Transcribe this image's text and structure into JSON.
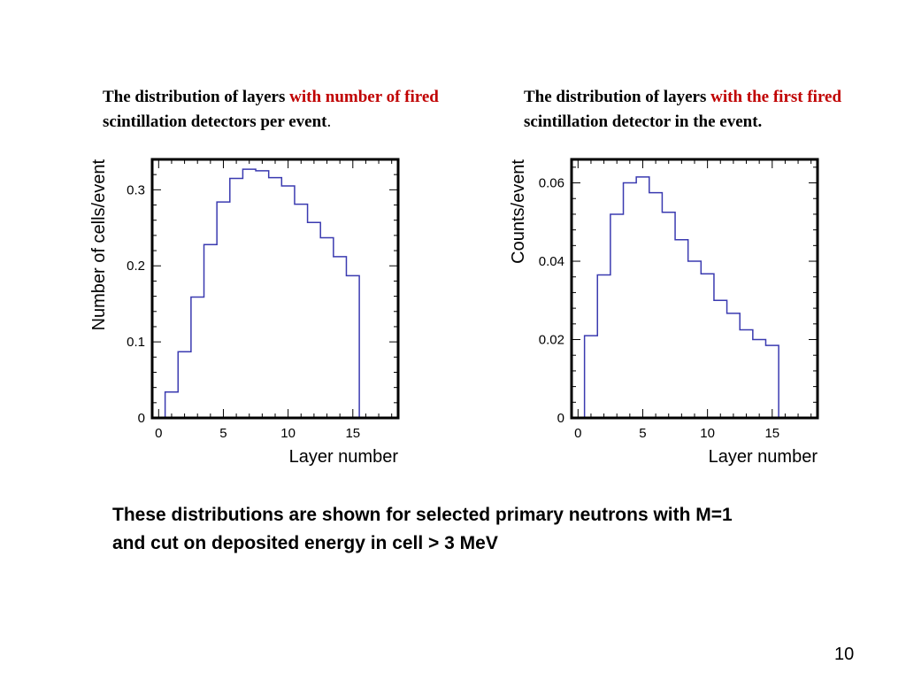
{
  "captions": {
    "left": {
      "part1": "The distribution of layers ",
      "highlight": "with number of fired",
      "part2": " scintillation detectors per event",
      "suffix": "."
    },
    "right": {
      "part1": "The distribution of layers ",
      "highlight": "with the first fired",
      "part2": " scintillation detector in the event."
    }
  },
  "colors": {
    "highlight": "#c00000",
    "histogram": "#3a3ab0",
    "frame": "#000000"
  },
  "chart_data": [
    {
      "type": "bar",
      "style": "step-histogram",
      "xlabel": "Layer number",
      "ylabel": "Number of cells/event",
      "xlim": [
        -0.5,
        18.5
      ],
      "ylim": [
        0,
        0.34
      ],
      "xticks": [
        0,
        5,
        10,
        15
      ],
      "yticks": [
        0,
        0.1,
        0.2,
        0.3
      ],
      "ytick_labels": [
        "0",
        "0.1",
        "0.2",
        "0.3"
      ],
      "bin_width": 1,
      "bin_centers": [
        0,
        1,
        2,
        3,
        4,
        5,
        6,
        7,
        8,
        9,
        10,
        11,
        12,
        13,
        14,
        15,
        16,
        17,
        18
      ],
      "values": [
        0,
        0.034,
        0.087,
        0.159,
        0.228,
        0.284,
        0.315,
        0.327,
        0.325,
        0.316,
        0.305,
        0.281,
        0.257,
        0.237,
        0.212,
        0.187,
        0,
        0,
        0
      ]
    },
    {
      "type": "bar",
      "style": "step-histogram",
      "xlabel": "Layer number",
      "ylabel": "Counts/event",
      "xlim": [
        -0.5,
        18.5
      ],
      "ylim": [
        0,
        0.066
      ],
      "xticks": [
        0,
        5,
        10,
        15
      ],
      "yticks": [
        0,
        0.02,
        0.04,
        0.06
      ],
      "ytick_labels": [
        "0",
        "0.02",
        "0.04",
        "0.06"
      ],
      "bin_width": 1,
      "bin_centers": [
        0,
        1,
        2,
        3,
        4,
        5,
        6,
        7,
        8,
        9,
        10,
        11,
        12,
        13,
        14,
        15,
        16,
        17,
        18
      ],
      "values": [
        0,
        0.021,
        0.0365,
        0.052,
        0.06,
        0.0615,
        0.0575,
        0.0525,
        0.0455,
        0.04,
        0.0368,
        0.03,
        0.0267,
        0.0225,
        0.02,
        0.0185,
        0,
        0,
        0
      ]
    }
  ],
  "bottom_text": {
    "line1": "These distributions are shown for selected primary neutrons with M=1",
    "line2": "and cut on deposited energy in cell > 3 MeV"
  },
  "page_number": "10"
}
